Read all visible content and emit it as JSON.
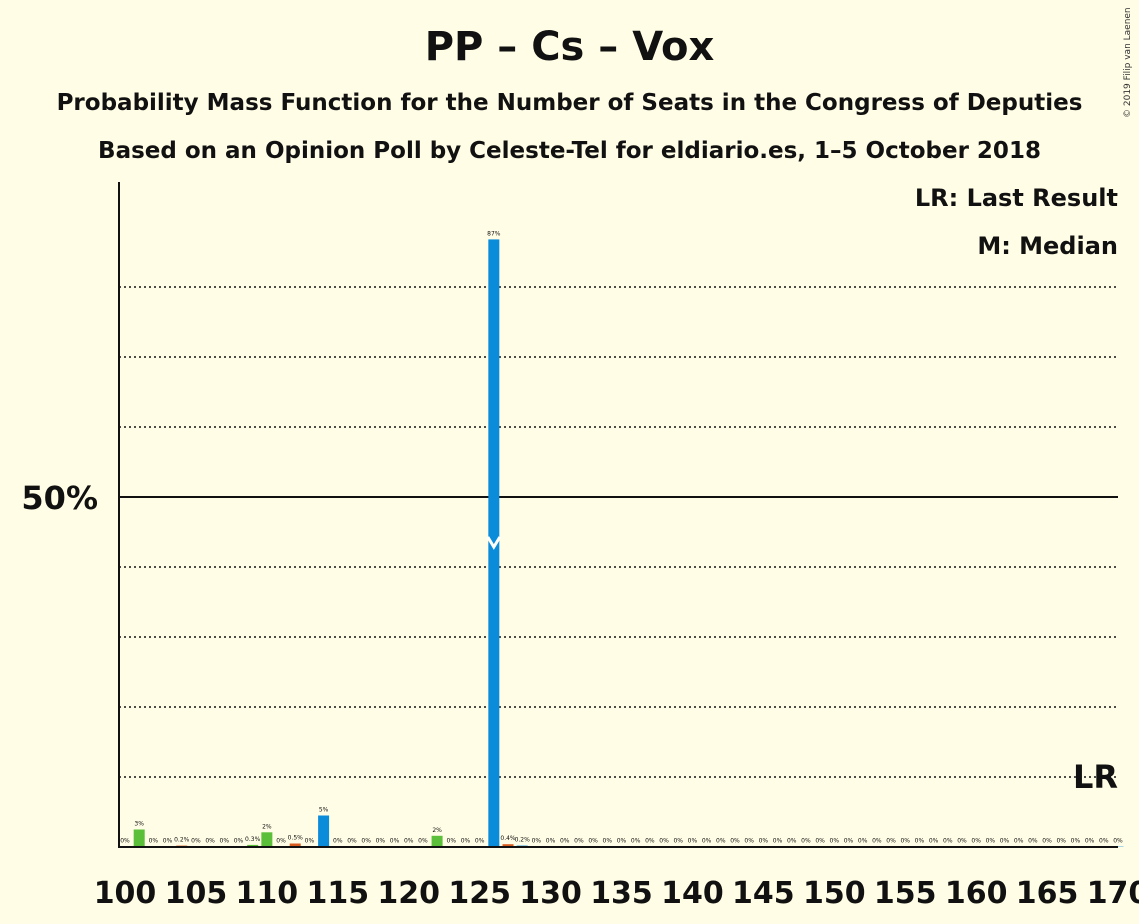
{
  "header": {
    "title": "PP – Cs – Vox",
    "subtitle": "Probability Mass Function for the Number of Seats in the Congress of Deputies",
    "subtitle2": "Based on an Opinion Poll by Celeste-Tel for eldiario.es, 1–5 October 2018",
    "copyright": "© 2019 Filip van Laenen"
  },
  "legend": {
    "last_result": "LR: Last Result",
    "median": "M: Median"
  },
  "markers": {
    "lr_label": "LR",
    "lr_seat": 170,
    "median_seat": 126
  },
  "colors": {
    "background": "#FFFDE5",
    "blue": "#0A8CDB",
    "green": "#5BBF3A",
    "orange": "#D95D1E",
    "gridline": "#111111"
  },
  "chart_data": {
    "type": "bar",
    "title": "PP – Cs – Vox",
    "xlabel": "Number of Seats",
    "ylabel": "Probability",
    "xlim": [
      100,
      170
    ],
    "ylim": [
      0,
      94
    ],
    "x_ticks": [
      100,
      105,
      110,
      115,
      120,
      125,
      130,
      135,
      140,
      145,
      150,
      155,
      160,
      165,
      170
    ],
    "x_tick_labels": [
      "100",
      "105",
      "110",
      "115",
      "120",
      "125",
      "130",
      "135",
      "140",
      "145",
      "150",
      "155",
      "160",
      "165",
      "170"
    ],
    "y_major": {
      "value": 50,
      "label": "50%"
    },
    "y_gridlines": [
      10,
      20,
      30,
      40,
      60,
      70,
      80
    ],
    "bars": [
      {
        "seat": 100,
        "value": 0.1,
        "label": "0%",
        "color": "blue"
      },
      {
        "seat": 101,
        "value": 2.5,
        "label": "3%",
        "color": "green"
      },
      {
        "seat": 102,
        "value": 0.05,
        "label": "0%",
        "color": "blue"
      },
      {
        "seat": 103,
        "value": 0.05,
        "label": "0%",
        "color": "blue"
      },
      {
        "seat": 104,
        "value": 0.2,
        "label": "0.2%",
        "color": "orange"
      },
      {
        "seat": 105,
        "value": 0.05,
        "label": "0%",
        "color": "blue"
      },
      {
        "seat": 106,
        "value": 0.05,
        "label": "0%",
        "color": "blue"
      },
      {
        "seat": 107,
        "value": 0.05,
        "label": "0%",
        "color": "blue"
      },
      {
        "seat": 108,
        "value": 0.05,
        "label": "0%",
        "color": "blue"
      },
      {
        "seat": 109,
        "value": 0.3,
        "label": "0.3%",
        "color": "green"
      },
      {
        "seat": 110,
        "value": 2.1,
        "label": "2%",
        "color": "green"
      },
      {
        "seat": 111,
        "value": 0.05,
        "label": "0%",
        "color": "blue"
      },
      {
        "seat": 112,
        "value": 0.5,
        "label": "0.5%",
        "color": "orange"
      },
      {
        "seat": 113,
        "value": 0.05,
        "label": "0%",
        "color": "blue"
      },
      {
        "seat": 114,
        "value": 4.5,
        "label": "5%",
        "color": "blue"
      },
      {
        "seat": 115,
        "value": 0.05,
        "label": "0%",
        "color": "blue"
      },
      {
        "seat": 116,
        "value": 0.05,
        "label": "0%",
        "color": "blue"
      },
      {
        "seat": 117,
        "value": 0.05,
        "label": "0%",
        "color": "blue"
      },
      {
        "seat": 118,
        "value": 0.05,
        "label": "0%",
        "color": "blue"
      },
      {
        "seat": 119,
        "value": 0.05,
        "label": "0%",
        "color": "blue"
      },
      {
        "seat": 120,
        "value": 0.05,
        "label": "0%",
        "color": "blue"
      },
      {
        "seat": 121,
        "value": 0.05,
        "label": "0%",
        "color": "blue"
      },
      {
        "seat": 122,
        "value": 1.6,
        "label": "2%",
        "color": "green"
      },
      {
        "seat": 123,
        "value": 0.05,
        "label": "0%",
        "color": "blue"
      },
      {
        "seat": 124,
        "value": 0.05,
        "label": "0%",
        "color": "blue"
      },
      {
        "seat": 125,
        "value": 0.05,
        "label": "0%",
        "color": "blue"
      },
      {
        "seat": 126,
        "value": 86.8,
        "label": "87%",
        "color": "blue"
      },
      {
        "seat": 127,
        "value": 0.4,
        "label": "0.4%",
        "color": "orange"
      },
      {
        "seat": 128,
        "value": 0.2,
        "label": "0.2%",
        "color": "blue"
      },
      {
        "seat": 129,
        "value": 0.05,
        "label": "0%",
        "color": "blue"
      },
      {
        "seat": 130,
        "value": 0.05,
        "label": "0%",
        "color": "blue"
      },
      {
        "seat": 131,
        "value": 0.05,
        "label": "0%",
        "color": "blue"
      },
      {
        "seat": 132,
        "value": 0.05,
        "label": "0%",
        "color": "blue"
      },
      {
        "seat": 133,
        "value": 0.05,
        "label": "0%",
        "color": "blue"
      },
      {
        "seat": 134,
        "value": 0.05,
        "label": "0%",
        "color": "blue"
      },
      {
        "seat": 135,
        "value": 0.05,
        "label": "0%",
        "color": "blue"
      },
      {
        "seat": 136,
        "value": 0.05,
        "label": "0%",
        "color": "blue"
      },
      {
        "seat": 137,
        "value": 0.05,
        "label": "0%",
        "color": "blue"
      },
      {
        "seat": 138,
        "value": 0.05,
        "label": "0%",
        "color": "blue"
      },
      {
        "seat": 139,
        "value": 0.05,
        "label": "0%",
        "color": "blue"
      },
      {
        "seat": 140,
        "value": 0.05,
        "label": "0%",
        "color": "blue"
      },
      {
        "seat": 141,
        "value": 0.05,
        "label": "0%",
        "color": "blue"
      },
      {
        "seat": 142,
        "value": 0.05,
        "label": "0%",
        "color": "blue"
      },
      {
        "seat": 143,
        "value": 0.05,
        "label": "0%",
        "color": "blue"
      },
      {
        "seat": 144,
        "value": 0.05,
        "label": "0%",
        "color": "blue"
      },
      {
        "seat": 145,
        "value": 0.05,
        "label": "0%",
        "color": "blue"
      },
      {
        "seat": 146,
        "value": 0.05,
        "label": "0%",
        "color": "blue"
      },
      {
        "seat": 147,
        "value": 0.05,
        "label": "0%",
        "color": "blue"
      },
      {
        "seat": 148,
        "value": 0.05,
        "label": "0%",
        "color": "blue"
      },
      {
        "seat": 149,
        "value": 0.05,
        "label": "0%",
        "color": "blue"
      },
      {
        "seat": 150,
        "value": 0.05,
        "label": "0%",
        "color": "blue"
      },
      {
        "seat": 151,
        "value": 0.05,
        "label": "0%",
        "color": "blue"
      },
      {
        "seat": 152,
        "value": 0.05,
        "label": "0%",
        "color": "blue"
      },
      {
        "seat": 153,
        "value": 0.05,
        "label": "0%",
        "color": "blue"
      },
      {
        "seat": 154,
        "value": 0.05,
        "label": "0%",
        "color": "blue"
      },
      {
        "seat": 155,
        "value": 0.05,
        "label": "0%",
        "color": "blue"
      },
      {
        "seat": 156,
        "value": 0.05,
        "label": "0%",
        "color": "blue"
      },
      {
        "seat": 157,
        "value": 0.05,
        "label": "0%",
        "color": "blue"
      },
      {
        "seat": 158,
        "value": 0.05,
        "label": "0%",
        "color": "blue"
      },
      {
        "seat": 159,
        "value": 0.05,
        "label": "0%",
        "color": "blue"
      },
      {
        "seat": 160,
        "value": 0.05,
        "label": "0%",
        "color": "blue"
      },
      {
        "seat": 161,
        "value": 0.05,
        "label": "0%",
        "color": "blue"
      },
      {
        "seat": 162,
        "value": 0.05,
        "label": "0%",
        "color": "blue"
      },
      {
        "seat": 163,
        "value": 0.05,
        "label": "0%",
        "color": "blue"
      },
      {
        "seat": 164,
        "value": 0.05,
        "label": "0%",
        "color": "blue"
      },
      {
        "seat": 165,
        "value": 0.05,
        "label": "0%",
        "color": "blue"
      },
      {
        "seat": 166,
        "value": 0.05,
        "label": "0%",
        "color": "blue"
      },
      {
        "seat": 167,
        "value": 0.05,
        "label": "0%",
        "color": "blue"
      },
      {
        "seat": 168,
        "value": 0.05,
        "label": "0%",
        "color": "blue"
      },
      {
        "seat": 169,
        "value": 0.05,
        "label": "0%",
        "color": "blue"
      },
      {
        "seat": 170,
        "value": 0.05,
        "label": "0%",
        "color": "blue"
      }
    ]
  }
}
